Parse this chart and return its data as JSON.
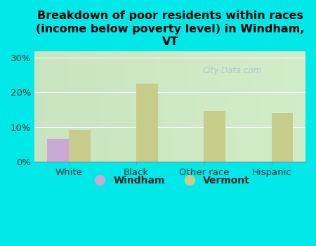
{
  "title": "Breakdown of poor residents within races\n(income below poverty level) in Windham,\nVT",
  "categories": [
    "White",
    "Black",
    "Other race",
    "Hispanic"
  ],
  "windham_values": [
    6.5,
    0,
    0,
    0
  ],
  "vermont_values": [
    9.0,
    22.5,
    14.5,
    14.0
  ],
  "windham_color": "#c9a8d4",
  "vermont_color": "#c8cc8a",
  "background_color": "#00e8e8",
  "ylim": [
    0,
    32
  ],
  "yticks": [
    0,
    10,
    20,
    30
  ],
  "ytick_labels": [
    "0%",
    "10%",
    "20%",
    "30%"
  ],
  "bar_width": 0.32,
  "title_fontsize": 11.5,
  "tick_fontsize": 9.5,
  "legend_fontsize": 10,
  "watermark": "City-Data.com",
  "plot_bg_color_topleft": "#d6ecd6",
  "plot_bg_color_bottomleft": "#c8e8c0",
  "plot_bg_color_topright": "#f0f4e8",
  "plot_bg_color_bottomright": "#e8f0e0"
}
